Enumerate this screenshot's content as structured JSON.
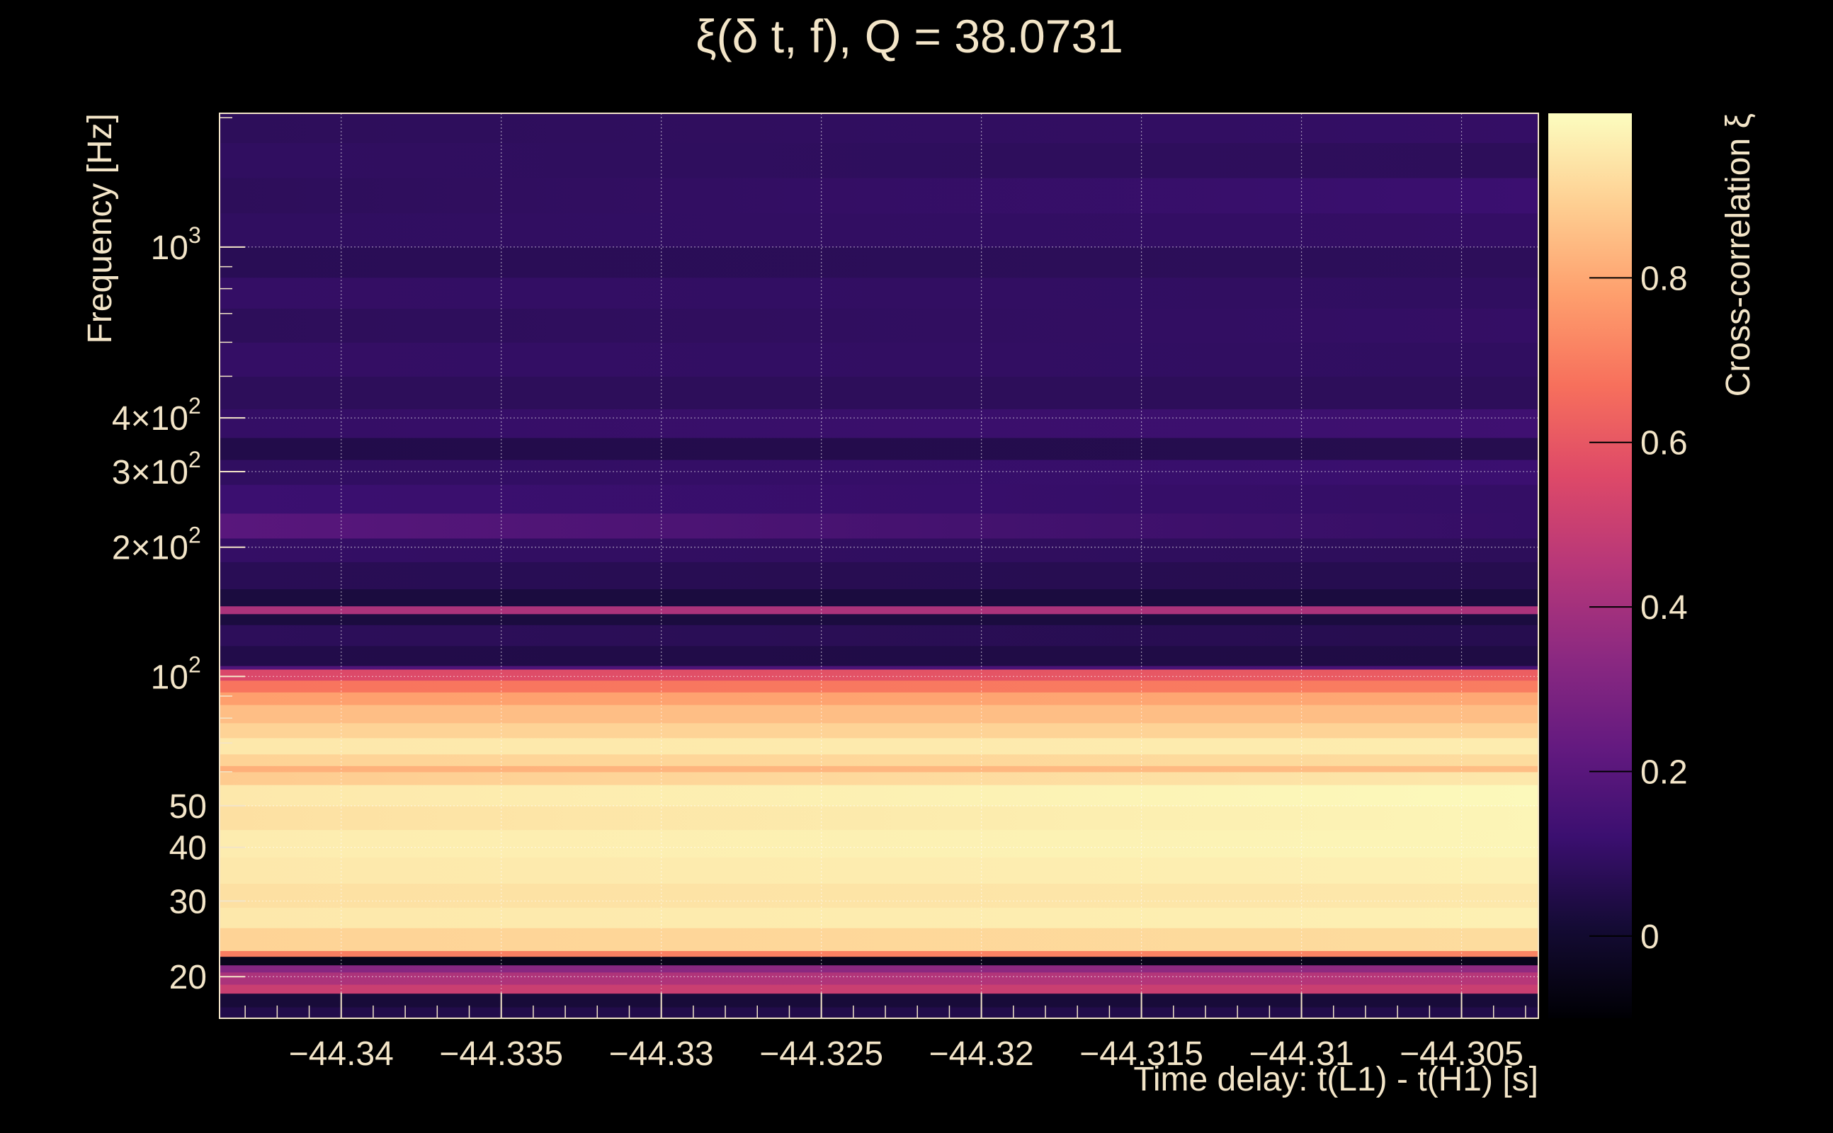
{
  "colors": {
    "background": "#000000",
    "text": "#f3e5c8",
    "grid": "#ffffff",
    "colormap": [
      "#000004",
      "#140b34",
      "#3b0f70",
      "#641a80",
      "#8c2981",
      "#b73779",
      "#de4968",
      "#f7705c",
      "#fe9f6d",
      "#fecf92",
      "#fcfdbf"
    ]
  },
  "chart_data": {
    "type": "heatmap",
    "title": "ξ(δ t, f), Q = 38.0731",
    "xlabel": "Time delay: t(L1) - t(H1) [s]",
    "ylabel": "Frequency [Hz]",
    "colorbar_label": "Cross-correlation ξ",
    "x_range": [
      -44.3438,
      -44.3026
    ],
    "y_range": [
      16.0,
      2048.0
    ],
    "y_scale": "log",
    "z_range": [
      -0.1,
      1.0
    ],
    "colormap": "inferno",
    "grid": true,
    "x_ticks": [
      {
        "value": -44.34,
        "label": "−44.34"
      },
      {
        "value": -44.335,
        "label": "−44.335"
      },
      {
        "value": -44.33,
        "label": "−44.33"
      },
      {
        "value": -44.325,
        "label": "−44.325"
      },
      {
        "value": -44.32,
        "label": "−44.32"
      },
      {
        "value": -44.315,
        "label": "−44.315"
      },
      {
        "value": -44.31,
        "label": "−44.31"
      },
      {
        "value": -44.305,
        "label": "−44.305"
      }
    ],
    "y_ticks": [
      {
        "value": 20,
        "label": "20"
      },
      {
        "value": 30,
        "label": "30"
      },
      {
        "value": 40,
        "label": "40"
      },
      {
        "value": 50,
        "label": "50"
      },
      {
        "value": 100,
        "label": "10",
        "sup": "2"
      },
      {
        "value": 200,
        "label": "2×10",
        "sup": "2"
      },
      {
        "value": 300,
        "label": "3×10",
        "sup": "2"
      },
      {
        "value": 400,
        "label": "4×10",
        "sup": "2"
      },
      {
        "value": 1000,
        "label": "10",
        "sup": "3"
      }
    ],
    "colorbar_ticks": [
      {
        "value": 0,
        "label": "0"
      },
      {
        "value": 0.2,
        "label": "0.2"
      },
      {
        "value": 0.4,
        "label": "0.4"
      },
      {
        "value": 0.6,
        "label": "0.6"
      },
      {
        "value": 0.8,
        "label": "0.8"
      }
    ],
    "bands": [
      {
        "f_low": 16.0,
        "f_high": 17.0,
        "xi_left": 0.05,
        "xi_right": 0.05
      },
      {
        "f_low": 17.0,
        "f_high": 18.3,
        "xi_left": 0.02,
        "xi_right": 0.02
      },
      {
        "f_low": 18.3,
        "f_high": 19.2,
        "xi_left": 0.5,
        "xi_right": 0.5
      },
      {
        "f_low": 19.2,
        "f_high": 20.5,
        "xi_left": 0.42,
        "xi_right": 0.45
      },
      {
        "f_low": 20.5,
        "f_high": 21.3,
        "xi_left": 0.32,
        "xi_right": 0.35
      },
      {
        "f_low": 21.3,
        "f_high": 22.3,
        "xi_left": -0.05,
        "xi_right": -0.05
      },
      {
        "f_low": 22.3,
        "f_high": 23.0,
        "xi_left": 0.7,
        "xi_right": 0.72
      },
      {
        "f_low": 23.0,
        "f_high": 26.0,
        "xi_left": 0.9,
        "xi_right": 0.92
      },
      {
        "f_low": 26.0,
        "f_high": 29.0,
        "xi_left": 0.95,
        "xi_right": 0.97
      },
      {
        "f_low": 29.0,
        "f_high": 33.0,
        "xi_left": 0.93,
        "xi_right": 0.95
      },
      {
        "f_low": 33.0,
        "f_high": 38.0,
        "xi_left": 0.95,
        "xi_right": 0.97
      },
      {
        "f_low": 38.0,
        "f_high": 44.0,
        "xi_left": 0.96,
        "xi_right": 0.98
      },
      {
        "f_low": 44.0,
        "f_high": 50.0,
        "xi_left": 0.93,
        "xi_right": 0.98
      },
      {
        "f_low": 50.0,
        "f_high": 56.0,
        "xi_left": 0.95,
        "xi_right": 0.99
      },
      {
        "f_low": 56.0,
        "f_high": 60.0,
        "xi_left": 0.88,
        "xi_right": 0.95
      },
      {
        "f_low": 60.0,
        "f_high": 62.0,
        "xi_left": 0.82,
        "xi_right": 0.85
      },
      {
        "f_low": 62.0,
        "f_high": 66.0,
        "xi_left": 0.9,
        "xi_right": 0.92
      },
      {
        "f_low": 66.0,
        "f_high": 72.0,
        "xi_left": 0.95,
        "xi_right": 0.96
      },
      {
        "f_low": 72.0,
        "f_high": 78.0,
        "xi_left": 0.9,
        "xi_right": 0.9
      },
      {
        "f_low": 78.0,
        "f_high": 86.0,
        "xi_left": 0.85,
        "xi_right": 0.85
      },
      {
        "f_low": 86.0,
        "f_high": 92.0,
        "xi_left": 0.78,
        "xi_right": 0.8
      },
      {
        "f_low": 92.0,
        "f_high": 98.0,
        "xi_left": 0.68,
        "xi_right": 0.7
      },
      {
        "f_low": 98.0,
        "f_high": 104.0,
        "xi_left": 0.55,
        "xi_right": 0.62
      },
      {
        "f_low": 104.0,
        "f_high": 106.0,
        "xi_left": 0.18,
        "xi_right": 0.15
      },
      {
        "f_low": 106.0,
        "f_high": 118.0,
        "xi_left": 0.05,
        "xi_right": 0.04
      },
      {
        "f_low": 118.0,
        "f_high": 132.0,
        "xi_left": 0.08,
        "xi_right": 0.06
      },
      {
        "f_low": 132.0,
        "f_high": 140.0,
        "xi_left": 0.03,
        "xi_right": 0.03
      },
      {
        "f_low": 140.0,
        "f_high": 146.0,
        "xi_left": 0.42,
        "xi_right": 0.42
      },
      {
        "f_low": 146.0,
        "f_high": 160.0,
        "xi_left": 0.03,
        "xi_right": 0.03
      },
      {
        "f_low": 160.0,
        "f_high": 185.0,
        "xi_left": 0.07,
        "xi_right": 0.06
      },
      {
        "f_low": 185.0,
        "f_high": 210.0,
        "xi_left": 0.1,
        "xi_right": 0.08
      },
      {
        "f_low": 210.0,
        "f_high": 240.0,
        "xi_left": 0.2,
        "xi_right": 0.1
      },
      {
        "f_low": 240.0,
        "f_high": 280.0,
        "xi_left": 0.12,
        "xi_right": 0.1
      },
      {
        "f_low": 280.0,
        "f_high": 320.0,
        "xi_left": 0.09,
        "xi_right": 0.12
      },
      {
        "f_low": 320.0,
        "f_high": 360.0,
        "xi_left": 0.05,
        "xi_right": 0.06
      },
      {
        "f_low": 360.0,
        "f_high": 420.0,
        "xi_left": 0.1,
        "xi_right": 0.13
      },
      {
        "f_low": 420.0,
        "f_high": 500.0,
        "xi_left": 0.08,
        "xi_right": 0.08
      },
      {
        "f_low": 500.0,
        "f_high": 600.0,
        "xi_left": 0.1,
        "xi_right": 0.09
      },
      {
        "f_low": 600.0,
        "f_high": 720.0,
        "xi_left": 0.08,
        "xi_right": 0.1
      },
      {
        "f_low": 720.0,
        "f_high": 850.0,
        "xi_left": 0.1,
        "xi_right": 0.09
      },
      {
        "f_low": 850.0,
        "f_high": 1000.0,
        "xi_left": 0.07,
        "xi_right": 0.08
      },
      {
        "f_low": 1000.0,
        "f_high": 1200.0,
        "xi_left": 0.09,
        "xi_right": 0.1
      },
      {
        "f_low": 1200.0,
        "f_high": 1450.0,
        "xi_left": 0.08,
        "xi_right": 0.12
      },
      {
        "f_low": 1450.0,
        "f_high": 1750.0,
        "xi_left": 0.09,
        "xi_right": 0.08
      },
      {
        "f_low": 1750.0,
        "f_high": 2048.0,
        "xi_left": 0.08,
        "xi_right": 0.1
      }
    ]
  }
}
